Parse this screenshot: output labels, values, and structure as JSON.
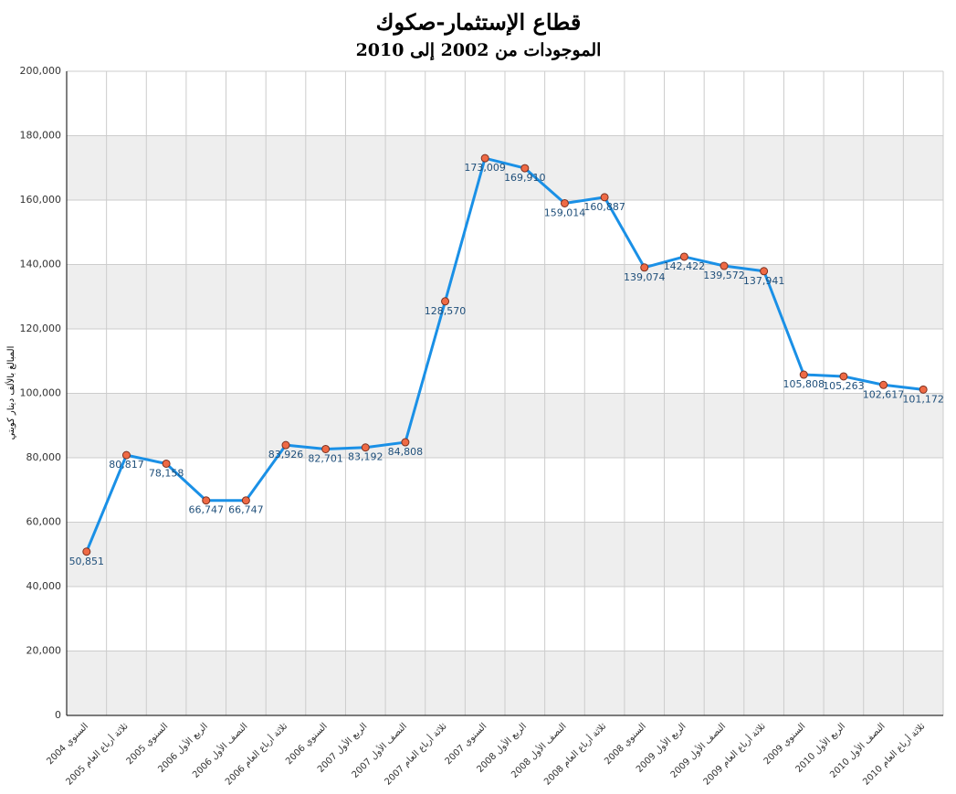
{
  "chart_data": {
    "type": "line",
    "title": "قطاع الإستثمار-صكوك",
    "subtitle": "الموجودات من 2002 إلى 2010",
    "y_label": "المبالغ بالألف دينار كويتي",
    "categories": [
      "السنوي 2004",
      "ثلاثة أرباع العام 2005",
      "السنوي 2005",
      "الربع الأول 2006",
      "النصف الأول 2006",
      "ثلاثة أرباع العام 2006",
      "السنوي 2006",
      "الربع الأول 2007",
      "النصف الأول 2007",
      "ثلاثة أرباع العام 2007",
      "السنوي 2007",
      "الربع الأول 2008",
      "النصف الأول 2008",
      "ثلاثة أرباع العام 2008",
      "السنوي 2008",
      "الربع الأول 2009",
      "النصف الأول 2009",
      "ثلاثة أرباع العام 2009",
      "السنوي 2009",
      "الربع الأول 2010",
      "النصف الأول 2010",
      "ثلاثة أرباع العام 2010"
    ],
    "values": [
      50851,
      80817,
      78158,
      66747,
      66747,
      83926,
      82701,
      83192,
      84808,
      128570,
      173009,
      169910,
      159014,
      160887,
      139074,
      142422,
      139572,
      137941,
      105808,
      105263,
      102617,
      101172
    ],
    "value_labels": [
      "50,851",
      "80,817",
      "78,158",
      "66,747",
      "66,747",
      "83,926",
      "82,701",
      "83,192",
      "84,808",
      "128,570",
      "173,009",
      "169,910",
      "159,014",
      "160,887",
      "139,074",
      "142,422",
      "139,572",
      "137,941",
      "105,808",
      "105,263",
      "102,617",
      "101,172"
    ],
    "color": "#1a90e6",
    "marker_color": "#ef6a45",
    "ylim": [
      0,
      200000
    ],
    "yticks": [
      0,
      {
        "value": 20000,
        "label": "20,000"
      },
      {
        "value": 40000,
        "label": "40,000"
      },
      {
        "value": 60000,
        "label": "60,000"
      },
      {
        "value": 80000,
        "label": "80,000"
      },
      {
        "value": 100000,
        "label": "100,000"
      },
      {
        "value": 120000,
        "label": "120,000"
      },
      {
        "value": 140000,
        "label": "140,000"
      },
      {
        "value": 160000,
        "label": "160,000"
      },
      {
        "value": 180000,
        "label": "180,000"
      },
      {
        "value": 200000,
        "label": "200,000"
      }
    ],
    "grid": true,
    "alternating_bands": true
  }
}
